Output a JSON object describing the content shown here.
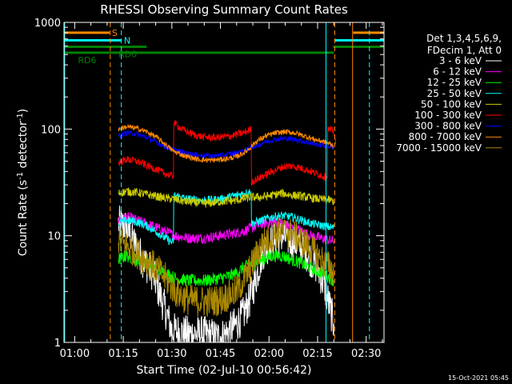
{
  "chart_data": {
    "type": "line",
    "title": "RHESSI Observing Summary Count Rates",
    "xlabel": "Start Time (02-Jul-10 00:56:42)",
    "ylabel_main": "Count Rate (s",
    "ylabel_sup1": "-1",
    "ylabel_mid": " detector",
    "ylabel_sup2": "-1",
    "ylabel_end": ")",
    "footer": "15-Oct-2021 05:45",
    "y_scale": "log",
    "ylim": [
      1,
      1000
    ],
    "xlim_minutes": [
      56.7,
      155.5
    ],
    "x_ticks": [
      {
        "m": 60,
        "label": "01:00"
      },
      {
        "m": 75,
        "label": "01:15"
      },
      {
        "m": 90,
        "label": "01:30"
      },
      {
        "m": 105,
        "label": "01:45"
      },
      {
        "m": 120,
        "label": "02:00"
      },
      {
        "m": 135,
        "label": "02:15"
      },
      {
        "m": 150,
        "label": "02:30"
      }
    ],
    "y_ticks": [
      {
        "v": 1,
        "label": "1"
      },
      {
        "v": 10,
        "label": "10"
      },
      {
        "v": 100,
        "label": "100"
      },
      {
        "v": 1000,
        "label": "1000"
      }
    ],
    "legend": {
      "header1": "Det 1,3,4,5,6,9,",
      "header2": "FDecim 1, Att 0",
      "entries": [
        {
          "label": "3 - 6 keV",
          "color": "#ffffff"
        },
        {
          "label": "6 - 12 keV",
          "color": "#ff00ff"
        },
        {
          "label": "12 - 25 keV",
          "color": "#00ff00"
        },
        {
          "label": "25 - 50 keV",
          "color": "#00ffff"
        },
        {
          "label": "50 - 100 keV",
          "color": "#cccc00"
        },
        {
          "label": "100 - 300 keV",
          "color": "#ff0000"
        },
        {
          "label": "300 - 800 keV",
          "color": "#0000ff"
        },
        {
          "label": "800 - 7000 keV",
          "color": "#ff8800"
        },
        {
          "label": "7000 - 15000 keV",
          "color": "#aa8800"
        }
      ]
    },
    "flags": [
      {
        "label": "S",
        "color": "#ff8800",
        "y": 800,
        "segments": [
          [
            56.9,
            70.8
          ]
        ],
        "label_at": 71.5
      },
      {
        "label": "N",
        "color": "#00ffff",
        "y": 680,
        "segments": [
          [
            56.9,
            74.3
          ],
          [
            140.3,
            155.5
          ]
        ],
        "label_at": 75.2
      },
      {
        "label": "RD0",
        "color": "#008000",
        "y": 590,
        "segments": [
          [
            56.9,
            82.2
          ],
          [
            139.8,
            155.5
          ]
        ],
        "label_at": 73.5
      },
      {
        "label": "RD6",
        "color": "#008000",
        "y": 520,
        "segments": [
          [
            56.9,
            74.0
          ],
          [
            74.0,
            90.5
          ],
          [
            90.5,
            115.0
          ],
          [
            115.0,
            140.0
          ]
        ],
        "label_at": 61.0
      },
      {
        "label": "",
        "color": "#ff8800",
        "y": 800,
        "segments": [
          [
            146.0,
            155.5
          ]
        ],
        "label_at": null
      }
    ],
    "vlines": [
      {
        "x": 56.9,
        "color": "#00ffff",
        "dash": false
      },
      {
        "x": 71.0,
        "color": "#ff8800",
        "dash": true
      },
      {
        "x": 74.4,
        "color": "#00ffff",
        "dash": true
      },
      {
        "x": 137.6,
        "color": "#00ffff",
        "dash": false
      },
      {
        "x": 140.3,
        "color": "#ff8800",
        "dash": true
      },
      {
        "x": 145.8,
        "color": "#ff8800",
        "dash": false
      },
      {
        "x": 151.0,
        "color": "#00ffff",
        "dash": true
      }
    ],
    "series": [
      {
        "color": "#ffffff",
        "noise": 0.35,
        "points": [
          [
            73.5,
            13
          ],
          [
            76,
            12
          ],
          [
            78,
            9
          ],
          [
            81,
            6
          ],
          [
            84,
            4.5
          ],
          [
            86,
            3
          ],
          [
            88,
            2
          ],
          [
            90,
            1.3
          ],
          [
            95,
            1.2
          ],
          [
            100,
            1.2
          ],
          [
            105,
            1.1
          ],
          [
            108,
            1.3
          ],
          [
            110,
            1.5
          ],
          [
            112,
            1.8
          ],
          [
            114,
            2.5
          ],
          [
            116,
            4
          ],
          [
            118,
            7
          ],
          [
            121,
            9
          ],
          [
            124,
            10
          ],
          [
            127,
            9
          ],
          [
            130,
            8
          ],
          [
            133,
            6
          ],
          [
            135,
            5
          ],
          [
            137,
            3.5
          ],
          [
            139,
            2
          ],
          [
            140,
            1.5
          ]
        ]
      },
      {
        "color": "#ff00ff",
        "noise": 0.1,
        "points": [
          [
            73.5,
            14
          ],
          [
            76,
            15
          ],
          [
            79,
            14
          ],
          [
            82,
            13
          ],
          [
            85,
            12
          ],
          [
            88,
            11
          ],
          [
            91,
            10
          ],
          [
            95,
            9.5
          ],
          [
            100,
            9.5
          ],
          [
            105,
            10
          ],
          [
            109,
            10.5
          ],
          [
            112,
            11
          ],
          [
            115,
            12
          ],
          [
            118,
            13
          ],
          [
            121,
            13.5
          ],
          [
            124,
            13
          ],
          [
            127,
            12
          ],
          [
            130,
            11
          ],
          [
            133,
            10
          ],
          [
            136,
            9.5
          ],
          [
            139,
            9
          ],
          [
            140,
            9
          ]
        ]
      },
      {
        "color": "#00ff00",
        "noise": 0.12,
        "points": [
          [
            73.5,
            6
          ],
          [
            76,
            6.5
          ],
          [
            79,
            6
          ],
          [
            82,
            5.5
          ],
          [
            85,
            5
          ],
          [
            88,
            4.5
          ],
          [
            91,
            4
          ],
          [
            95,
            3.8
          ],
          [
            100,
            3.8
          ],
          [
            105,
            4
          ],
          [
            108,
            4.2
          ],
          [
            110,
            4.5
          ],
          [
            112,
            5
          ],
          [
            115,
            5.5
          ],
          [
            118,
            6
          ],
          [
            121,
            6.5
          ],
          [
            124,
            6.5
          ],
          [
            127,
            6
          ],
          [
            130,
            5.5
          ],
          [
            133,
            5
          ],
          [
            136,
            4.5
          ],
          [
            139,
            4
          ],
          [
            140,
            3.8
          ]
        ]
      },
      {
        "color": "#00ffff",
        "noise": 0.08,
        "points": [
          [
            73.5,
            13
          ],
          [
            76,
            14
          ],
          [
            79,
            13.5
          ],
          [
            82,
            12.5
          ],
          [
            85,
            11
          ],
          [
            88,
            9.5
          ],
          [
            90.5,
            8.5
          ],
          [
            90.6,
            24
          ],
          [
            95,
            22
          ],
          [
            100,
            21.5
          ],
          [
            105,
            22
          ],
          [
            110,
            24
          ],
          [
            114.5,
            26
          ],
          [
            114.6,
            13
          ],
          [
            118,
            14
          ],
          [
            121,
            15
          ],
          [
            124,
            15.5
          ],
          [
            127,
            15
          ],
          [
            130,
            14
          ],
          [
            133,
            13
          ],
          [
            136,
            12.5
          ],
          [
            139,
            12
          ],
          [
            140,
            12
          ]
        ]
      },
      {
        "color": "#cccc00",
        "noise": 0.08,
        "points": [
          [
            73.5,
            25
          ],
          [
            76,
            26
          ],
          [
            79,
            25.5
          ],
          [
            82,
            24.5
          ],
          [
            85,
            23.5
          ],
          [
            88,
            22.5
          ],
          [
            90.5,
            22
          ],
          [
            94,
            21
          ],
          [
            100,
            20
          ],
          [
            106,
            21
          ],
          [
            110,
            21.5
          ],
          [
            114.5,
            23
          ],
          [
            118,
            23
          ],
          [
            121,
            24
          ],
          [
            124,
            25
          ],
          [
            127,
            24
          ],
          [
            130,
            23.5
          ],
          [
            133,
            22.5
          ],
          [
            136,
            22
          ],
          [
            139,
            21.5
          ],
          [
            140,
            21
          ]
        ]
      },
      {
        "color": "#aa8800",
        "noise": 0.3,
        "points": [
          [
            73.5,
            9
          ],
          [
            76,
            8
          ],
          [
            79,
            7
          ],
          [
            82,
            6
          ],
          [
            85,
            5
          ],
          [
            88,
            4
          ],
          [
            91,
            3
          ],
          [
            95,
            2.5
          ],
          [
            100,
            2.4
          ],
          [
            105,
            2.5
          ],
          [
            108,
            2.8
          ],
          [
            110,
            3
          ],
          [
            112,
            3.8
          ],
          [
            114,
            4.8
          ],
          [
            116,
            6.5
          ],
          [
            118,
            8.5
          ],
          [
            121,
            10
          ],
          [
            124,
            11
          ],
          [
            127,
            10.5
          ],
          [
            130,
            9
          ],
          [
            133,
            7.5
          ],
          [
            136,
            6
          ],
          [
            139,
            5
          ],
          [
            140,
            4.5
          ]
        ]
      },
      {
        "color": "#ff0000",
        "noise": 0.07,
        "points": [
          [
            73.5,
            48
          ],
          [
            76,
            52
          ],
          [
            79,
            50
          ],
          [
            82,
            46
          ],
          [
            85,
            42
          ],
          [
            88,
            38
          ],
          [
            90.5,
            36
          ],
          [
            90.6,
            115
          ],
          [
            93,
            100
          ],
          [
            97,
            88
          ],
          [
            100,
            84
          ],
          [
            104,
            83
          ],
          [
            108,
            86
          ],
          [
            112,
            92
          ],
          [
            114.5,
            100
          ],
          [
            114.6,
            32
          ],
          [
            118,
            36
          ],
          [
            121,
            40
          ],
          [
            124,
            44
          ],
          [
            127,
            45
          ],
          [
            130,
            43
          ],
          [
            133,
            40
          ],
          [
            136,
            37
          ],
          [
            138,
            35
          ],
          [
            138.1,
            100
          ],
          [
            140,
            95
          ],
          [
            140.6,
            72
          ]
        ]
      },
      {
        "color": "#0000ff",
        "noise": 0.05,
        "points": [
          [
            73.5,
            86
          ],
          [
            76,
            92
          ],
          [
            79,
            90
          ],
          [
            82,
            84
          ],
          [
            85,
            76
          ],
          [
            88,
            68
          ],
          [
            90.5,
            64
          ],
          [
            94,
            60
          ],
          [
            98,
            57
          ],
          [
            102,
            56
          ],
          [
            106,
            57
          ],
          [
            110,
            60
          ],
          [
            113,
            64
          ],
          [
            116,
            70
          ],
          [
            119,
            76
          ],
          [
            122,
            80
          ],
          [
            125,
            82
          ],
          [
            128,
            80
          ],
          [
            131,
            76
          ],
          [
            134,
            72
          ],
          [
            137,
            70
          ],
          [
            140,
            68
          ]
        ]
      },
      {
        "color": "#ff8800",
        "noise": 0.05,
        "points": [
          [
            73.5,
            100
          ],
          [
            76,
            105
          ],
          [
            79,
            102
          ],
          [
            82,
            95
          ],
          [
            85,
            85
          ],
          [
            88,
            72
          ],
          [
            90.5,
            62
          ],
          [
            94,
            56
          ],
          [
            98,
            52
          ],
          [
            102,
            51
          ],
          [
            106,
            52
          ],
          [
            110,
            55
          ],
          [
            113,
            62
          ],
          [
            116,
            76
          ],
          [
            119,
            86
          ],
          [
            122,
            92
          ],
          [
            125,
            94
          ],
          [
            128,
            92
          ],
          [
            131,
            86
          ],
          [
            134,
            80
          ],
          [
            137,
            76
          ],
          [
            140,
            70
          ]
        ]
      }
    ]
  }
}
